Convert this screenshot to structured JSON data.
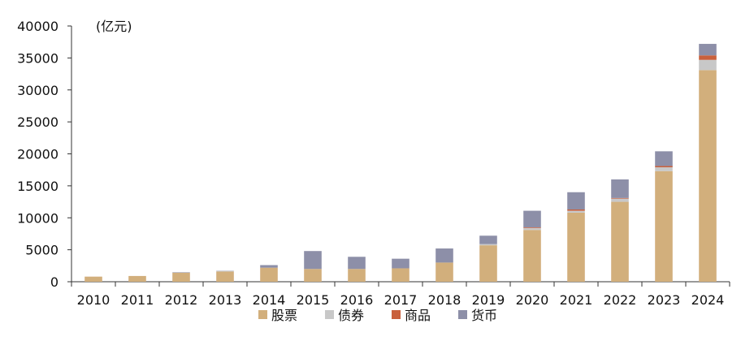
{
  "chart_data": {
    "type": "bar",
    "stacked": true,
    "unit_label": "(亿元)",
    "categories": [
      "2010",
      "2011",
      "2012",
      "2013",
      "2014",
      "2015",
      "2016",
      "2017",
      "2018",
      "2019",
      "2020",
      "2021",
      "2022",
      "2023",
      "2024"
    ],
    "series": [
      {
        "name": "股票",
        "color": "#D2AF7C",
        "values": [
          800,
          900,
          1400,
          1600,
          2200,
          2000,
          2000,
          2100,
          3000,
          5700,
          8100,
          10800,
          12500,
          17300,
          33100
        ]
      },
      {
        "name": "债券",
        "color": "#C8C8C8",
        "values": [
          0,
          0,
          50,
          50,
          0,
          0,
          0,
          0,
          0,
          200,
          300,
          300,
          500,
          600,
          1600
        ]
      },
      {
        "name": "商品",
        "color": "#C9603C",
        "values": [
          0,
          0,
          0,
          0,
          0,
          0,
          0,
          0,
          0,
          0,
          100,
          200,
          100,
          200,
          700
        ]
      },
      {
        "name": "货币",
        "color": "#8D8FA8",
        "values": [
          0,
          0,
          50,
          50,
          400,
          2800,
          1900,
          1500,
          2200,
          1300,
          2600,
          2700,
          2900,
          2300,
          1800
        ]
      }
    ],
    "ylim": [
      0,
      40000
    ],
    "yticks": [
      0,
      5000,
      10000,
      15000,
      20000,
      25000,
      30000,
      35000,
      40000
    ],
    "legend_position": "bottom",
    "grid": false
  }
}
